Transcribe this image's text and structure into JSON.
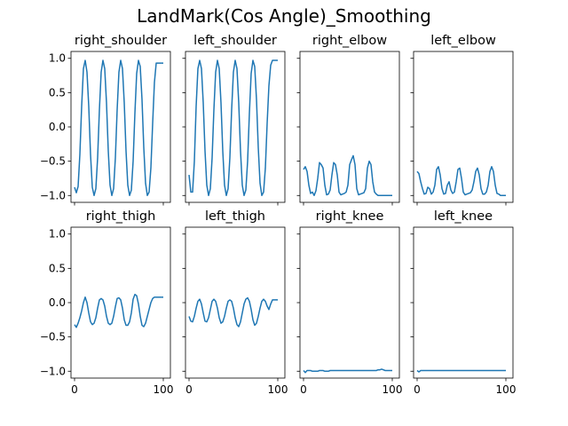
{
  "suptitle": "LandMark(Cos Angle)_Smoothing",
  "chart_data": [
    {
      "type": "line",
      "title": "right_shoulder",
      "series": [
        {
          "color": "#1f77b4",
          "x": [
            0,
            2,
            4,
            6,
            8,
            10,
            12,
            14,
            16,
            18,
            20,
            22,
            24,
            26,
            28,
            30,
            32,
            34,
            36,
            38,
            40,
            42,
            44,
            46,
            48,
            50,
            52,
            54,
            56,
            58,
            60,
            62,
            64,
            66,
            68,
            70,
            72,
            74,
            76,
            78,
            80,
            82,
            84,
            86,
            88,
            90,
            92,
            94,
            96,
            98,
            100
          ],
          "values": [
            -0.88,
            -0.96,
            -0.87,
            -0.4,
            0.3,
            0.85,
            0.97,
            0.8,
            0.3,
            -0.4,
            -0.88,
            -1.0,
            -0.9,
            -0.45,
            0.25,
            0.8,
            0.97,
            0.85,
            0.35,
            -0.35,
            -0.85,
            -1.0,
            -0.9,
            -0.45,
            0.25,
            0.8,
            0.97,
            0.85,
            0.35,
            -0.35,
            -0.85,
            -1.0,
            -0.92,
            -0.5,
            0.2,
            0.78,
            0.97,
            0.88,
            0.4,
            -0.3,
            -0.82,
            -1.0,
            -0.95,
            -0.6,
            0.05,
            0.65,
            0.93,
            0.93,
            0.93,
            0.93,
            0.93
          ]
        }
      ],
      "xlim": [
        -4,
        108
      ],
      "ylim": [
        -1.1,
        1.1
      ]
    },
    {
      "type": "line",
      "title": "left_shoulder",
      "series": [
        {
          "color": "#1f77b4",
          "x": [
            0,
            2,
            4,
            6,
            8,
            10,
            12,
            14,
            16,
            18,
            20,
            22,
            24,
            26,
            28,
            30,
            32,
            34,
            36,
            38,
            40,
            42,
            44,
            46,
            48,
            50,
            52,
            54,
            56,
            58,
            60,
            62,
            64,
            66,
            68,
            70,
            72,
            74,
            76,
            78,
            80,
            82,
            84,
            86,
            88,
            90,
            92,
            94,
            96,
            98,
            100
          ],
          "values": [
            -0.7,
            -0.95,
            -0.95,
            -0.5,
            0.3,
            0.85,
            0.97,
            0.85,
            0.35,
            -0.35,
            -0.85,
            -1.0,
            -0.9,
            -0.45,
            0.25,
            0.8,
            0.97,
            0.85,
            0.35,
            -0.35,
            -0.85,
            -1.0,
            -0.9,
            -0.45,
            0.25,
            0.8,
            0.97,
            0.85,
            0.35,
            -0.35,
            -0.85,
            -1.0,
            -0.92,
            -0.5,
            0.2,
            0.78,
            0.97,
            0.88,
            0.4,
            -0.3,
            -0.82,
            -1.0,
            -0.95,
            -0.6,
            0.05,
            0.6,
            0.9,
            0.97,
            0.97,
            0.97,
            0.97
          ]
        }
      ],
      "xlim": [
        -4,
        108
      ],
      "ylim": [
        -1.1,
        1.1
      ]
    },
    {
      "type": "line",
      "title": "right_elbow",
      "series": [
        {
          "color": "#1f77b4",
          "x": [
            0,
            2,
            4,
            6,
            8,
            10,
            12,
            14,
            16,
            18,
            20,
            22,
            24,
            26,
            28,
            30,
            32,
            34,
            36,
            38,
            40,
            42,
            44,
            46,
            48,
            50,
            52,
            54,
            56,
            58,
            60,
            62,
            64,
            66,
            68,
            70,
            72,
            74,
            76,
            78,
            80,
            82,
            84,
            86,
            88,
            90,
            92,
            94,
            96,
            98,
            100
          ],
          "values": [
            -0.62,
            -0.58,
            -0.65,
            -0.85,
            -0.97,
            -0.95,
            -1.0,
            -0.93,
            -0.75,
            -0.52,
            -0.55,
            -0.6,
            -0.85,
            -0.99,
            -0.98,
            -0.92,
            -0.7,
            -0.52,
            -0.55,
            -0.7,
            -0.95,
            -0.99,
            -0.98,
            -0.97,
            -0.95,
            -0.85,
            -0.55,
            -0.48,
            -0.42,
            -0.55,
            -0.9,
            -0.99,
            -0.98,
            -0.97,
            -0.96,
            -0.9,
            -0.6,
            -0.5,
            -0.55,
            -0.8,
            -0.95,
            -0.98,
            -1.0,
            -1.0,
            -1.0,
            -1.0,
            -1.0,
            -1.0,
            -1.0,
            -1.0,
            -1.0
          ]
        }
      ],
      "xlim": [
        -4,
        108
      ],
      "ylim": [
        -1.1,
        1.1
      ]
    },
    {
      "type": "line",
      "title": "left_elbow",
      "series": [
        {
          "color": "#1f77b4",
          "x": [
            0,
            2,
            4,
            6,
            8,
            10,
            12,
            14,
            16,
            18,
            20,
            22,
            24,
            26,
            28,
            30,
            32,
            34,
            36,
            38,
            40,
            42,
            44,
            46,
            48,
            50,
            52,
            54,
            56,
            58,
            60,
            62,
            64,
            66,
            68,
            70,
            72,
            74,
            76,
            78,
            80,
            82,
            84,
            86,
            88,
            90,
            92,
            94,
            96,
            98,
            100
          ],
          "values": [
            -0.65,
            -0.68,
            -0.8,
            -0.9,
            -0.98,
            -0.97,
            -0.88,
            -0.9,
            -0.98,
            -0.95,
            -0.85,
            -0.62,
            -0.58,
            -0.7,
            -0.9,
            -0.98,
            -0.97,
            -0.85,
            -0.8,
            -0.92,
            -0.97,
            -0.95,
            -0.8,
            -0.62,
            -0.6,
            -0.75,
            -0.95,
            -0.99,
            -0.98,
            -0.97,
            -0.96,
            -0.92,
            -0.8,
            -0.65,
            -0.6,
            -0.7,
            -0.9,
            -0.98,
            -0.98,
            -0.95,
            -0.85,
            -0.65,
            -0.58,
            -0.65,
            -0.85,
            -0.97,
            -0.98,
            -1.0,
            -1.0,
            -1.0,
            -1.0
          ]
        }
      ],
      "xlim": [
        -4,
        108
      ],
      "ylim": [
        -1.1,
        1.1
      ]
    },
    {
      "type": "line",
      "title": "right_thigh",
      "series": [
        {
          "color": "#1f77b4",
          "x": [
            0,
            2,
            4,
            6,
            8,
            10,
            12,
            14,
            16,
            18,
            20,
            22,
            24,
            26,
            28,
            30,
            32,
            34,
            36,
            38,
            40,
            42,
            44,
            46,
            48,
            50,
            52,
            54,
            56,
            58,
            60,
            62,
            64,
            66,
            68,
            70,
            72,
            74,
            76,
            78,
            80,
            82,
            84,
            86,
            88,
            90,
            92,
            94,
            96,
            98,
            100
          ],
          "values": [
            -0.32,
            -0.36,
            -0.3,
            -0.22,
            -0.12,
            0.0,
            0.08,
            0.0,
            -0.15,
            -0.28,
            -0.32,
            -0.3,
            -0.22,
            -0.08,
            0.04,
            0.06,
            0.04,
            -0.05,
            -0.2,
            -0.3,
            -0.32,
            -0.3,
            -0.2,
            -0.06,
            0.06,
            0.07,
            0.04,
            -0.08,
            -0.25,
            -0.33,
            -0.33,
            -0.28,
            -0.15,
            0.05,
            0.12,
            0.1,
            -0.02,
            -0.2,
            -0.33,
            -0.35,
            -0.3,
            -0.2,
            -0.1,
            0.0,
            0.06,
            0.08,
            0.08,
            0.08,
            0.08,
            0.08,
            0.08
          ]
        }
      ],
      "xlim": [
        -4,
        108
      ],
      "ylim": [
        -1.1,
        1.1
      ]
    },
    {
      "type": "line",
      "title": "left_thigh",
      "series": [
        {
          "color": "#1f77b4",
          "x": [
            0,
            2,
            4,
            6,
            8,
            10,
            12,
            14,
            16,
            18,
            20,
            22,
            24,
            26,
            28,
            30,
            32,
            34,
            36,
            38,
            40,
            42,
            44,
            46,
            48,
            50,
            52,
            54,
            56,
            58,
            60,
            62,
            64,
            66,
            68,
            70,
            72,
            74,
            76,
            78,
            80,
            82,
            84,
            86,
            88,
            90,
            92,
            94,
            96,
            98,
            100
          ],
          "values": [
            -0.2,
            -0.27,
            -0.28,
            -0.2,
            -0.08,
            0.02,
            0.05,
            -0.02,
            -0.15,
            -0.27,
            -0.28,
            -0.22,
            -0.1,
            0.02,
            0.05,
            0.02,
            -0.08,
            -0.22,
            -0.3,
            -0.28,
            -0.2,
            -0.08,
            0.02,
            0.04,
            0.02,
            -0.08,
            -0.22,
            -0.32,
            -0.35,
            -0.28,
            -0.15,
            -0.02,
            0.05,
            0.07,
            0.02,
            -0.1,
            -0.25,
            -0.33,
            -0.3,
            -0.2,
            -0.08,
            0.02,
            0.05,
            0.02,
            -0.05,
            -0.1,
            -0.02,
            0.04,
            0.04,
            0.04,
            0.04
          ]
        }
      ],
      "xlim": [
        -4,
        108
      ],
      "ylim": [
        -1.1,
        1.1
      ]
    },
    {
      "type": "line",
      "title": "right_knee",
      "series": [
        {
          "color": "#1f77b4",
          "x": [
            0,
            2,
            4,
            6,
            8,
            10,
            12,
            14,
            16,
            18,
            20,
            22,
            24,
            26,
            28,
            30,
            32,
            34,
            36,
            38,
            40,
            42,
            44,
            46,
            48,
            50,
            52,
            54,
            56,
            58,
            60,
            62,
            64,
            66,
            68,
            70,
            72,
            74,
            76,
            78,
            80,
            82,
            84,
            86,
            88,
            90,
            92,
            94,
            96,
            98,
            100
          ],
          "values": [
            -0.99,
            -1.02,
            -0.99,
            -0.99,
            -0.99,
            -1.0,
            -1.0,
            -1.0,
            -1.0,
            -0.99,
            -0.99,
            -0.99,
            -1.0,
            -1.0,
            -1.0,
            -0.99,
            -0.99,
            -0.99,
            -0.99,
            -0.99,
            -0.99,
            -0.99,
            -0.99,
            -0.99,
            -0.99,
            -0.99,
            -0.99,
            -0.99,
            -0.99,
            -0.99,
            -0.99,
            -0.99,
            -0.99,
            -0.99,
            -0.99,
            -0.99,
            -0.99,
            -0.99,
            -0.99,
            -0.99,
            -0.99,
            -0.99,
            -0.98,
            -0.98,
            -0.97,
            -0.98,
            -0.99,
            -0.99,
            -0.99,
            -0.99,
            -0.99
          ]
        }
      ],
      "xlim": [
        -4,
        108
      ],
      "ylim": [
        -1.1,
        1.1
      ]
    },
    {
      "type": "line",
      "title": "left_knee",
      "series": [
        {
          "color": "#1f77b4",
          "x": [
            0,
            2,
            4,
            6,
            8,
            10,
            12,
            14,
            16,
            18,
            20,
            22,
            24,
            26,
            28,
            30,
            32,
            34,
            36,
            38,
            40,
            42,
            44,
            46,
            48,
            50,
            52,
            54,
            56,
            58,
            60,
            62,
            64,
            66,
            68,
            70,
            72,
            74,
            76,
            78,
            80,
            82,
            84,
            86,
            88,
            90,
            92,
            94,
            96,
            98,
            100
          ],
          "values": [
            -0.99,
            -1.01,
            -0.99,
            -0.99,
            -0.99,
            -0.99,
            -0.99,
            -0.99,
            -0.99,
            -0.99,
            -0.99,
            -0.99,
            -0.99,
            -0.99,
            -0.99,
            -0.99,
            -0.99,
            -0.99,
            -0.99,
            -0.99,
            -0.99,
            -0.99,
            -0.99,
            -0.99,
            -0.99,
            -0.99,
            -0.99,
            -0.99,
            -0.99,
            -0.99,
            -0.99,
            -0.99,
            -0.99,
            -0.99,
            -0.99,
            -0.99,
            -0.99,
            -0.99,
            -0.99,
            -0.99,
            -0.99,
            -0.99,
            -0.99,
            -0.99,
            -0.99,
            -0.99,
            -0.99,
            -0.99,
            -0.99,
            -0.99,
            -0.99
          ]
        }
      ],
      "xlim": [
        -4,
        108
      ],
      "ylim": [
        -1.1,
        1.1
      ]
    }
  ],
  "axes": {
    "yticks": [
      1.0,
      0.5,
      0.0,
      -0.5,
      -1.0
    ],
    "ytick_labels": [
      "1.0",
      "0.5",
      "0.0",
      "−0.5",
      "−1.0"
    ],
    "xticks": [
      0,
      100
    ],
    "xtick_labels": [
      "0",
      "100"
    ]
  }
}
